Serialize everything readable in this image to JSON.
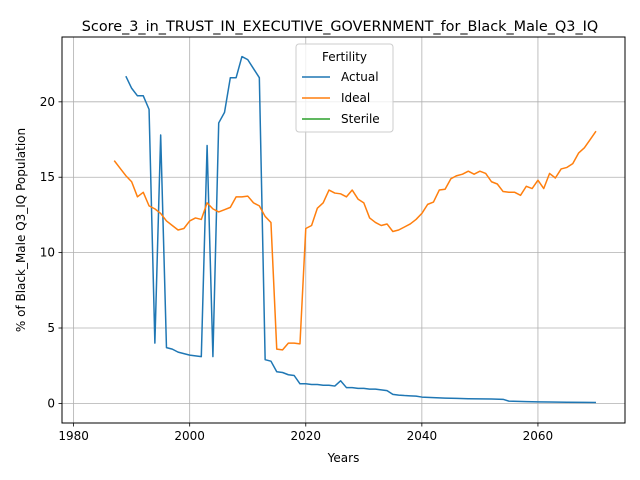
{
  "chart_data": {
    "type": "line",
    "title": "Score_3_in_TRUST_IN_EXECUTIVE_GOVERNMENT_for_Black_Male_Q3_IQ",
    "xlabel": "Years",
    "ylabel": "% of Black_Male Q3_IQ Population",
    "xlim": [
      1978,
      2075
    ],
    "ylim": [
      -1.3,
      24.3
    ],
    "xticks": [
      1980,
      2000,
      2020,
      2040,
      2060
    ],
    "yticks": [
      0,
      5,
      10,
      15,
      20
    ],
    "grid": true,
    "legend": {
      "title": "Fertility",
      "placement": "top-center"
    },
    "series": [
      {
        "name": "Actual",
        "color": "#1f77b4",
        "points": [
          [
            1989,
            21.7
          ],
          [
            1990,
            20.9
          ],
          [
            1991,
            20.4
          ],
          [
            1992,
            20.4
          ],
          [
            1993,
            19.5
          ],
          [
            1994,
            4.0
          ],
          [
            1995,
            17.8
          ],
          [
            1996,
            3.7
          ],
          [
            1997,
            3.6
          ],
          [
            1998,
            3.4
          ],
          [
            1999,
            3.3
          ],
          [
            2000,
            3.2
          ],
          [
            2001,
            3.15
          ],
          [
            2002,
            3.1
          ],
          [
            2003,
            17.1
          ],
          [
            2004,
            3.1
          ],
          [
            2005,
            18.6
          ],
          [
            2006,
            19.3
          ],
          [
            2007,
            21.6
          ],
          [
            2008,
            21.6
          ],
          [
            2009,
            23.0
          ],
          [
            2010,
            22.8
          ],
          [
            2011,
            22.2
          ],
          [
            2012,
            21.6
          ],
          [
            2013,
            2.9
          ],
          [
            2014,
            2.8
          ],
          [
            2015,
            2.1
          ],
          [
            2016,
            2.05
          ],
          [
            2017,
            1.9
          ],
          [
            2018,
            1.85
          ],
          [
            2019,
            1.3
          ],
          [
            2020,
            1.3
          ],
          [
            2021,
            1.25
          ],
          [
            2022,
            1.25
          ],
          [
            2023,
            1.2
          ],
          [
            2024,
            1.2
          ],
          [
            2025,
            1.15
          ],
          [
            2026,
            1.5
          ],
          [
            2027,
            1.05
          ],
          [
            2028,
            1.05
          ],
          [
            2029,
            1.0
          ],
          [
            2030,
            1.0
          ],
          [
            2031,
            0.95
          ],
          [
            2032,
            0.95
          ],
          [
            2033,
            0.9
          ],
          [
            2034,
            0.85
          ],
          [
            2035,
            0.6
          ],
          [
            2036,
            0.55
          ],
          [
            2037,
            0.52
          ],
          [
            2038,
            0.5
          ],
          [
            2039,
            0.48
          ],
          [
            2040,
            0.42
          ],
          [
            2042,
            0.38
          ],
          [
            2044,
            0.35
          ],
          [
            2046,
            0.33
          ],
          [
            2048,
            0.31
          ],
          [
            2050,
            0.3
          ],
          [
            2052,
            0.29
          ],
          [
            2054,
            0.27
          ],
          [
            2055,
            0.15
          ],
          [
            2058,
            0.12
          ],
          [
            2060,
            0.1
          ],
          [
            2062,
            0.09
          ],
          [
            2065,
            0.08
          ],
          [
            2068,
            0.07
          ],
          [
            2070,
            0.06
          ]
        ]
      },
      {
        "name": "Ideal",
        "color": "#ff7f0e",
        "points": [
          [
            1987,
            16.1
          ],
          [
            1988,
            15.6
          ],
          [
            1989,
            15.1
          ],
          [
            1990,
            14.7
          ],
          [
            1991,
            13.7
          ],
          [
            1992,
            14.0
          ],
          [
            1993,
            13.1
          ],
          [
            1994,
            12.9
          ],
          [
            1995,
            12.6
          ],
          [
            1996,
            12.1
          ],
          [
            1997,
            11.8
          ],
          [
            1998,
            11.5
          ],
          [
            1999,
            11.6
          ],
          [
            2000,
            12.1
          ],
          [
            2001,
            12.3
          ],
          [
            2002,
            12.2
          ],
          [
            2003,
            13.3
          ],
          [
            2004,
            12.9
          ],
          [
            2005,
            12.7
          ],
          [
            2006,
            12.85
          ],
          [
            2007,
            13.0
          ],
          [
            2008,
            13.7
          ],
          [
            2009,
            13.7
          ],
          [
            2010,
            13.75
          ],
          [
            2011,
            13.3
          ],
          [
            2012,
            13.1
          ],
          [
            2013,
            12.4
          ],
          [
            2014,
            12.0
          ],
          [
            2015,
            3.6
          ],
          [
            2016,
            3.55
          ],
          [
            2017,
            4.0
          ],
          [
            2018,
            4.0
          ],
          [
            2019,
            3.95
          ],
          [
            2020,
            11.6
          ],
          [
            2021,
            11.8
          ],
          [
            2022,
            12.95
          ],
          [
            2023,
            13.3
          ],
          [
            2024,
            14.15
          ],
          [
            2025,
            13.95
          ],
          [
            2026,
            13.9
          ],
          [
            2027,
            13.7
          ],
          [
            2028,
            14.15
          ],
          [
            2029,
            13.55
          ],
          [
            2030,
            13.3
          ],
          [
            2031,
            12.3
          ],
          [
            2032,
            12.0
          ],
          [
            2033,
            11.8
          ],
          [
            2034,
            11.9
          ],
          [
            2035,
            11.4
          ],
          [
            2036,
            11.5
          ],
          [
            2037,
            11.7
          ],
          [
            2038,
            11.9
          ],
          [
            2039,
            12.2
          ],
          [
            2040,
            12.6
          ],
          [
            2041,
            13.2
          ],
          [
            2042,
            13.35
          ],
          [
            2043,
            14.15
          ],
          [
            2044,
            14.2
          ],
          [
            2045,
            14.9
          ],
          [
            2046,
            15.1
          ],
          [
            2047,
            15.2
          ],
          [
            2048,
            15.4
          ],
          [
            2049,
            15.2
          ],
          [
            2050,
            15.4
          ],
          [
            2051,
            15.25
          ],
          [
            2052,
            14.7
          ],
          [
            2053,
            14.55
          ],
          [
            2054,
            14.05
          ],
          [
            2055,
            14.0
          ],
          [
            2056,
            14.0
          ],
          [
            2057,
            13.8
          ],
          [
            2058,
            14.4
          ],
          [
            2059,
            14.25
          ],
          [
            2060,
            14.8
          ],
          [
            2061,
            14.25
          ],
          [
            2062,
            15.25
          ],
          [
            2063,
            14.95
          ],
          [
            2064,
            15.55
          ],
          [
            2065,
            15.65
          ],
          [
            2066,
            15.9
          ],
          [
            2067,
            16.6
          ],
          [
            2068,
            16.95
          ],
          [
            2069,
            17.5
          ],
          [
            2070,
            18.05
          ]
        ]
      },
      {
        "name": "Sterile",
        "color": "#2ca02c",
        "points": []
      }
    ]
  }
}
